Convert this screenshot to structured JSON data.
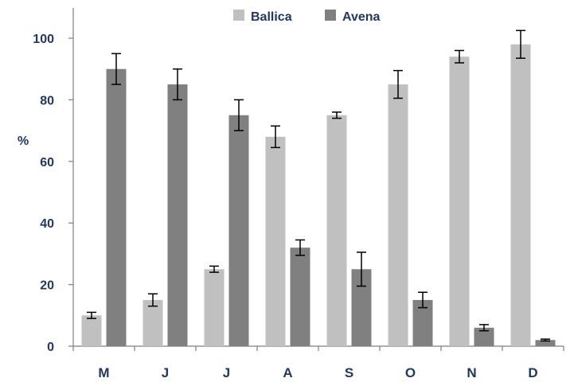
{
  "chart_data": {
    "type": "bar",
    "categories": [
      "M",
      "J",
      "J",
      "A",
      "S",
      "O",
      "N",
      "D"
    ],
    "series": [
      {
        "name": "Ballica",
        "color": "#c0c0c0",
        "values": [
          10,
          15,
          25,
          68,
          75,
          85,
          94,
          98
        ],
        "errors": [
          1,
          2,
          1,
          3.5,
          1,
          4.5,
          2,
          4.5
        ]
      },
      {
        "name": "Avena",
        "color": "#808080",
        "values": [
          90,
          85,
          75,
          32,
          25,
          15,
          6,
          2
        ],
        "errors": [
          5,
          5,
          5,
          2.5,
          5.5,
          2.5,
          1,
          0.3
        ]
      }
    ],
    "ylabel": "%",
    "xlabel": "",
    "ylim": [
      0,
      100
    ],
    "yticks": [
      0,
      20,
      40,
      60,
      80,
      100
    ],
    "grid": false,
    "legend_position": "top-center"
  }
}
